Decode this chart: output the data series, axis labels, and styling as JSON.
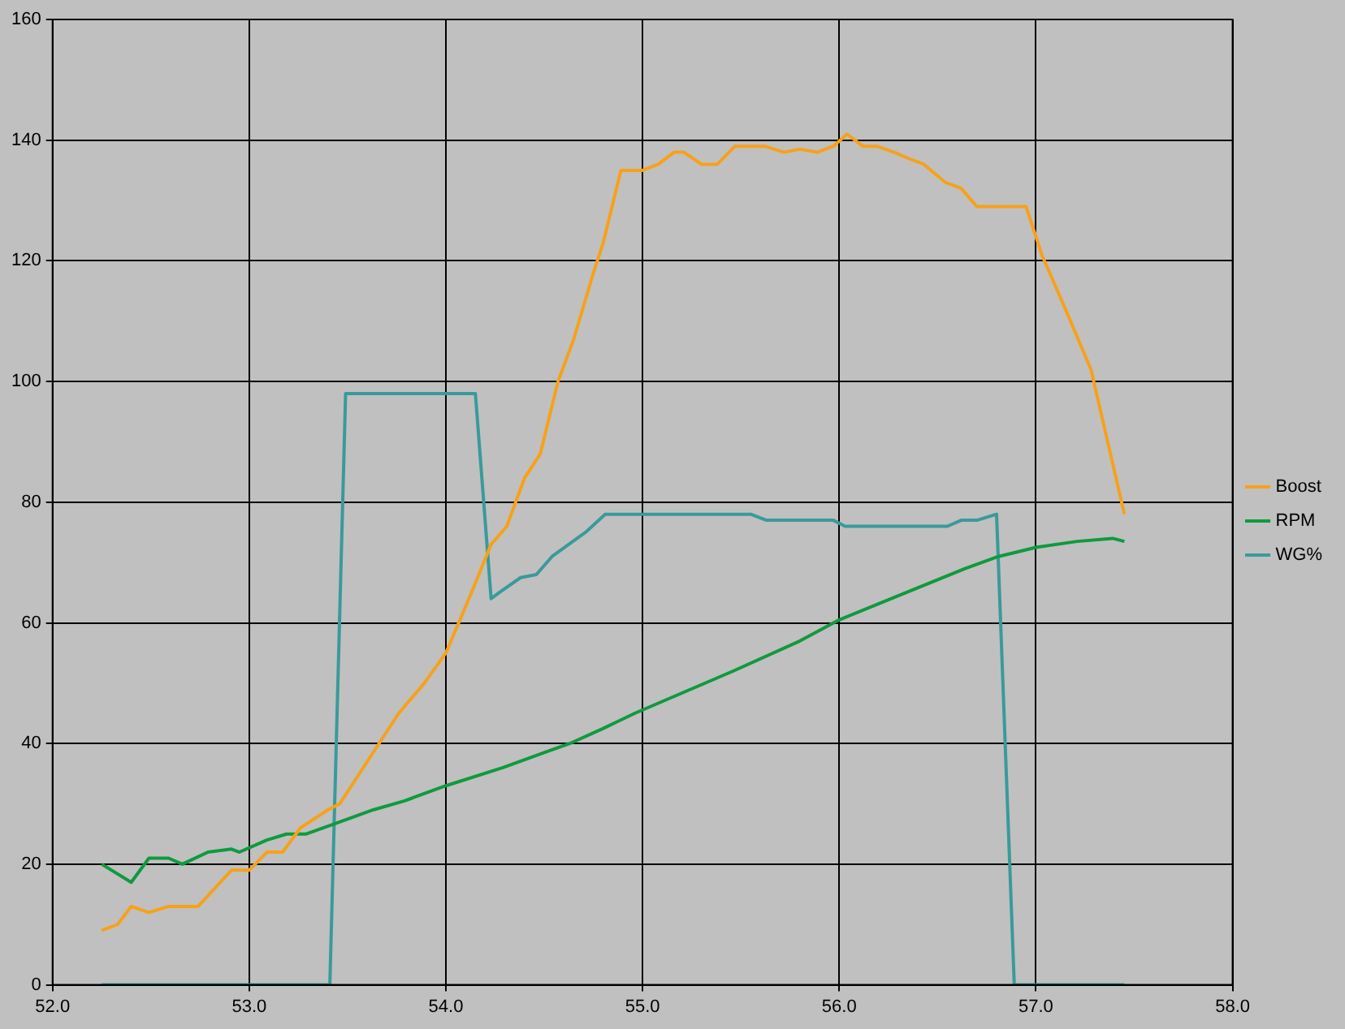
{
  "chart_data": {
    "type": "line",
    "xlim": [
      52,
      58
    ],
    "xticks": [
      {
        "value": 52,
        "label": "52.0"
      },
      {
        "value": 53,
        "label": "53.0"
      },
      {
        "value": 54,
        "label": "54.0"
      },
      {
        "value": 55,
        "label": "55.0"
      },
      {
        "value": 56,
        "label": "56.0"
      },
      {
        "value": 57,
        "label": "57.0"
      },
      {
        "value": 58,
        "label": "58.0"
      }
    ],
    "ylim": [
      0,
      160
    ],
    "yticks": [
      0,
      20,
      40,
      60,
      80,
      100,
      120,
      140,
      160
    ],
    "grid": true,
    "legend": "right",
    "marker": "none",
    "line_style": "solid",
    "series": [
      {
        "name": "Boost",
        "color": "#f7a11a",
        "x": [
          52.25,
          52.33,
          52.4,
          52.49,
          52.59,
          52.74,
          52.91,
          53.0,
          53.09,
          53.17,
          53.26,
          53.4,
          53.46,
          53.6,
          53.76,
          53.89,
          54.0,
          54.13,
          54.23,
          54.31,
          54.4,
          54.48,
          54.57,
          54.65,
          54.75,
          54.8,
          54.89,
          55.0,
          55.08,
          55.16,
          55.21,
          55.3,
          55.38,
          55.47,
          55.62,
          55.72,
          55.8,
          55.89,
          55.97,
          56.04,
          56.12,
          56.19,
          56.28,
          56.35,
          56.43,
          56.54,
          56.62,
          56.7,
          56.95,
          57.03,
          57.15,
          57.28,
          57.45
        ],
        "values": [
          9,
          10,
          13,
          12,
          13,
          13,
          19,
          19,
          22,
          22,
          26,
          29,
          30,
          37,
          45,
          50,
          55,
          65,
          73,
          76,
          84,
          88,
          100,
          107,
          118,
          123,
          135,
          135,
          136,
          138,
          138,
          136,
          136,
          139,
          139,
          138,
          138.5,
          138,
          139,
          141,
          139,
          139,
          138,
          137,
          136,
          133,
          132,
          129,
          129,
          121,
          112,
          102,
          78
        ]
      },
      {
        "name": "RPM",
        "color": "#0f9a3f",
        "x": [
          52.25,
          52.4,
          52.49,
          52.59,
          52.66,
          52.79,
          52.91,
          52.95,
          53.09,
          53.19,
          53.29,
          53.46,
          53.63,
          53.79,
          54.0,
          54.29,
          54.5,
          54.63,
          54.8,
          54.96,
          55.21,
          55.46,
          55.8,
          56.0,
          56.3,
          56.64,
          56.81,
          57.0,
          57.21,
          57.39,
          57.45
        ],
        "values": [
          20,
          17,
          21,
          21,
          20,
          22,
          22.5,
          22,
          24,
          25,
          25,
          27,
          29,
          30.5,
          33,
          36,
          38.5,
          40,
          42.5,
          45,
          48.5,
          52,
          57,
          60.5,
          64.5,
          69,
          71,
          72.5,
          73.5,
          74,
          73.5
        ]
      },
      {
        "name": "WG%",
        "color": "#3a9a9a",
        "x": [
          52.25,
          53.41,
          53.49,
          54.15,
          54.23,
          54.27,
          54.38,
          54.46,
          54.54,
          54.71,
          54.81,
          55.55,
          55.63,
          55.97,
          56.03,
          56.55,
          56.62,
          56.7,
          56.8,
          56.89,
          57.45
        ],
        "values": [
          0,
          0,
          98,
          98,
          64,
          65,
          67.5,
          68,
          71,
          75,
          78,
          78,
          77,
          77,
          76,
          76,
          77,
          77,
          78,
          0,
          0
        ]
      }
    ]
  }
}
